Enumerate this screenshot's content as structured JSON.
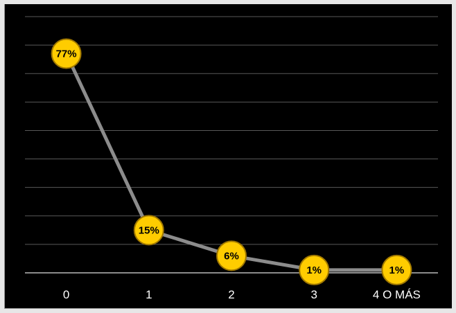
{
  "chart_data": {
    "type": "line",
    "categories": [
      "0",
      "1",
      "2",
      "3",
      "4 O MÁS"
    ],
    "values": [
      77,
      15,
      6,
      1,
      1
    ],
    "data_labels": [
      "77%",
      "15%",
      "6%",
      "1%",
      "1%"
    ],
    "title": "",
    "xlabel": "",
    "ylabel": "",
    "ylim": [
      0,
      90
    ],
    "ytick_step": 10,
    "y_tick_labels_visible": false,
    "grid": true,
    "legend": "none",
    "colors": {
      "background": "#000000",
      "gridline": "#595959",
      "axis": "#8c8c8c",
      "line": "#8c8c8c",
      "marker_fill": "#ffcc00",
      "marker_stroke": "#a07800",
      "label_text": "#000000",
      "tick_text": "#ffffff"
    }
  }
}
